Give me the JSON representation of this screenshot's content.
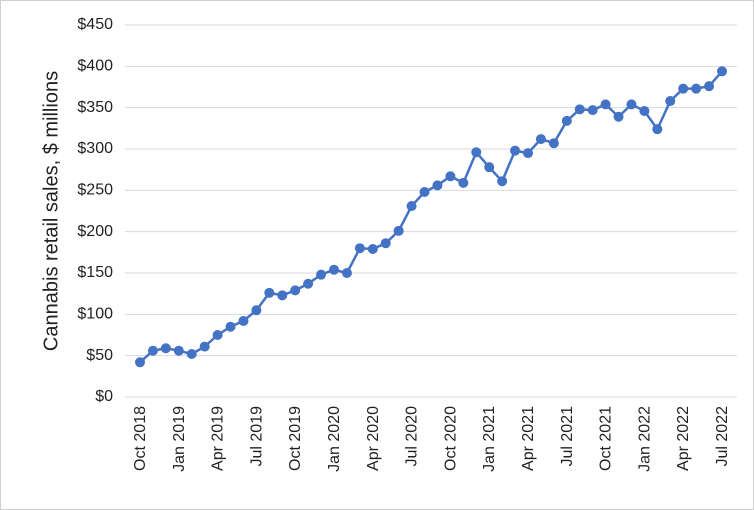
{
  "chart_data": {
    "type": "line",
    "y_label": "Cannabis retail sales, $ millions",
    "categories": [
      "Oct 2018",
      null,
      null,
      "Jan 2019",
      null,
      null,
      "Apr 2019",
      null,
      null,
      "Jul 2019",
      null,
      null,
      "Oct 2019",
      null,
      null,
      "Jan 2020",
      null,
      null,
      "Apr 2020",
      null,
      null,
      "Jul 2020",
      null,
      null,
      "Oct 2020",
      null,
      null,
      "Jan 2021",
      null,
      null,
      "Apr 2021",
      null,
      null,
      "Jul 2021",
      null,
      null,
      "Oct 2021",
      null,
      null,
      "Jan 2022",
      null,
      null,
      "Apr 2022",
      null,
      null,
      "Jul 2022"
    ],
    "series": [
      {
        "color": "#4472c4",
        "values": [
          42,
          56,
          59,
          56,
          52,
          61,
          75,
          85,
          92,
          105,
          126,
          123,
          129,
          137,
          148,
          154,
          150,
          180,
          179,
          186,
          201,
          231,
          248,
          256,
          267,
          259,
          296,
          278,
          261,
          298,
          295,
          312,
          307,
          334,
          348,
          347,
          354,
          339,
          354,
          346,
          324,
          358,
          373,
          373,
          376,
          394
        ]
      }
    ],
    "ylim": [
      0,
      450
    ],
    "yticks": [
      {
        "value": 0,
        "label": "$0"
      },
      {
        "value": 50,
        "label": "$50"
      },
      {
        "value": 100,
        "label": "$100"
      },
      {
        "value": 150,
        "label": "$150"
      },
      {
        "value": 200,
        "label": "$200"
      },
      {
        "value": 250,
        "label": "$250"
      },
      {
        "value": 300,
        "label": "$300"
      },
      {
        "value": 350,
        "label": "$350"
      },
      {
        "value": 400,
        "label": "$400"
      },
      {
        "value": 450,
        "label": "$450"
      }
    ],
    "grid": true
  }
}
